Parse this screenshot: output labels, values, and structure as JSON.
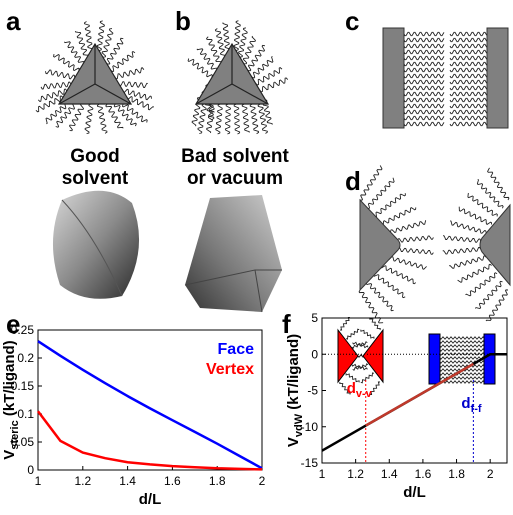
{
  "panels": {
    "a": "a",
    "b": "b",
    "c": "c",
    "d": "d",
    "e": "e",
    "f": "f"
  },
  "captions": {
    "a": [
      "Good",
      "solvent"
    ],
    "b": [
      "Bad solvent",
      "or vacuum"
    ]
  },
  "chart_data": [
    {
      "type": "line",
      "x_label": "d/L",
      "y_label": {
        "main": "V",
        "sub": "steric",
        "rest": " (kT/ligand)"
      },
      "x": [
        1,
        1.1,
        1.2,
        1.3,
        1.4,
        1.5,
        1.6,
        1.7,
        1.8,
        1.9,
        2
      ],
      "series": [
        {
          "name": "Face",
          "color": "#0000ff",
          "values": [
            0.23,
            0.204,
            0.179,
            0.155,
            0.132,
            0.11,
            0.089,
            0.068,
            0.047,
            0.025,
            0.003
          ]
        },
        {
          "name": "Vertex",
          "color": "#ff0000",
          "values": [
            0.105,
            0.052,
            0.031,
            0.021,
            0.014,
            0.01,
            0.007,
            0.005,
            0.003,
            0.002,
            0.001
          ]
        }
      ],
      "xlim": [
        1,
        2
      ],
      "xticks": [
        1,
        1.2,
        1.4,
        1.6,
        1.8,
        2
      ],
      "ylim": [
        0,
        0.25
      ],
      "yticks": [
        0,
        0.05,
        0.1,
        0.15,
        0.2,
        0.25
      ]
    },
    {
      "type": "line",
      "x_label": "d/L",
      "y_label": {
        "main": "V",
        "sub": "vdW",
        "rest": " (kT/ligand)"
      },
      "series": [
        {
          "color": "#000000",
          "x": [
            1,
            2,
            2.1
          ],
          "values": [
            -13.3,
            0,
            0
          ]
        },
        {
          "color": "#c0392b",
          "x": [
            1.26,
            1.9
          ],
          "values": [
            -9.84,
            -1.33
          ]
        }
      ],
      "hlines": [
        0
      ],
      "vlines": [
        {
          "x": 1.26,
          "color": "#ff0000",
          "text": "d",
          "sub": "v-v"
        },
        {
          "x": 1.9,
          "color": "#0000cc",
          "text": "d",
          "sub": "f-f"
        }
      ],
      "xlim": [
        1,
        2.1
      ],
      "xticks": [
        1,
        1.2,
        1.4,
        1.6,
        1.8,
        2
      ],
      "ylim": [
        -15,
        5
      ],
      "yticks": [
        -15,
        -10,
        -5,
        0,
        5
      ]
    }
  ]
}
